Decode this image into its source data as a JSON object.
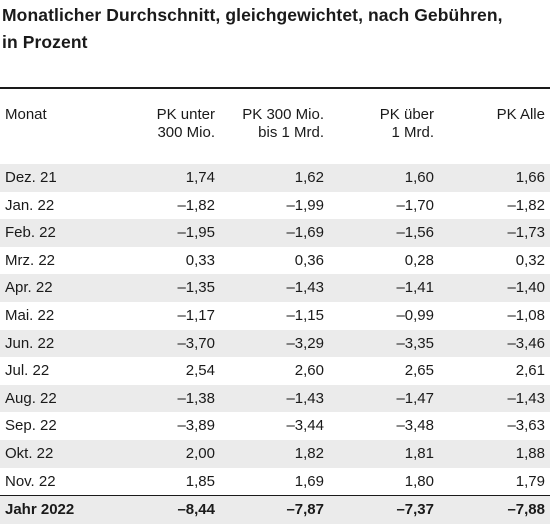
{
  "title_line1": "Monatlicher Durchschnitt, gleichgewichtet, nach Gebühren,",
  "title_line2": "in Prozent",
  "chart_data": {
    "type": "table",
    "columns": [
      {
        "line1": "Monat",
        "line2": ""
      },
      {
        "line1": "PK unter",
        "line2": "300 Mio."
      },
      {
        "line1": "PK 300 Mio.",
        "line2": "bis 1 Mrd."
      },
      {
        "line1": "PK über",
        "line2": "1 Mrd."
      },
      {
        "line1": "PK Alle",
        "line2": ""
      }
    ],
    "rows": [
      [
        "Dez. 21",
        "1,74",
        "1,62",
        "1,60",
        "1,66"
      ],
      [
        "Jan. 22",
        "–1,82",
        "–1,99",
        "–1,70",
        "–1,82"
      ],
      [
        "Feb. 22",
        "–1,95",
        "–1,69",
        "–1,56",
        "–1,73"
      ],
      [
        "Mrz. 22",
        "0,33",
        "0,36",
        "0,28",
        "0,32"
      ],
      [
        "Apr. 22",
        "–1,35",
        "–1,43",
        "–1,41",
        "–1,40"
      ],
      [
        "Mai. 22",
        "–1,17",
        "–1,15",
        "–0,99",
        "–1,08"
      ],
      [
        "Jun. 22",
        "–3,70",
        "–3,29",
        "–3,35",
        "–3,46"
      ],
      [
        "Jul. 22",
        "2,54",
        "2,60",
        "2,65",
        "2,61"
      ],
      [
        "Aug. 22",
        "–1,38",
        "–1,43",
        "–1,47",
        "–1,43"
      ],
      [
        "Sep. 22",
        "–3,89",
        "–3,44",
        "–3,48",
        "–3,63"
      ],
      [
        "Okt. 22",
        "2,00",
        "1,82",
        "1,81",
        "1,88"
      ],
      [
        "Nov. 22",
        "1,85",
        "1,69",
        "1,80",
        "1,79"
      ]
    ],
    "total": [
      "Jahr 2022",
      "–8,44",
      "–7,87",
      "–7,37",
      "–7,88"
    ]
  }
}
